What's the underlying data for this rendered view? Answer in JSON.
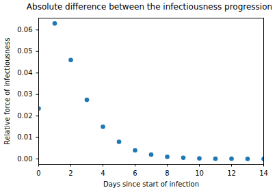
{
  "chart_data": {
    "type": "scatter",
    "title": "Absolute difference between the infectiousness progression",
    "x_label": "Days since start of infection",
    "y_label": "Relative force of infectiousness",
    "x": [
      0,
      1,
      2,
      3,
      4,
      5,
      6,
      7,
      8,
      9,
      10,
      11,
      12,
      13,
      14
    ],
    "values": [
      0.0235,
      0.063,
      0.046,
      0.0275,
      0.015,
      0.008,
      0.004,
      0.002,
      0.001,
      0.0006,
      0.0003,
      0.0001,
      0.0001,
      5e-05,
      2e-05
    ],
    "color": "#1f77b4",
    "xlim": [
      0,
      14
    ],
    "xticks": [
      0,
      2,
      4,
      6,
      8,
      10,
      12,
      14
    ],
    "ylim": [
      -0.0025,
      0.0655
    ],
    "yticks": [
      {
        "value": 0,
        "label": "0.00"
      },
      {
        "value": 0.01,
        "label": "0.01"
      },
      {
        "value": 0.02,
        "label": "0.02"
      },
      {
        "value": 0.03,
        "label": "0.03"
      },
      {
        "value": 0.04,
        "label": "0.04"
      },
      {
        "value": 0.05,
        "label": "0.05"
      },
      {
        "value": 0.06,
        "label": "0.06"
      }
    ],
    "grid": false
  }
}
